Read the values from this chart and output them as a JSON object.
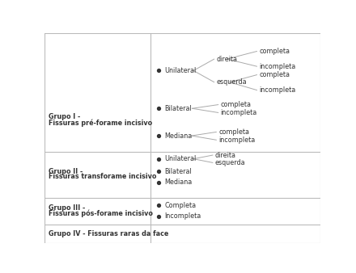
{
  "fig_width": 4.4,
  "fig_height": 3.38,
  "dpi": 100,
  "bg": "#ffffff",
  "border_color": "#bbbbbb",
  "text_color": "#333333",
  "line_color": "#aaaaaa",
  "fs": 5.8,
  "fs_bold": 5.8,
  "col_split": 0.385,
  "row_splits": [
    0.0,
    0.088,
    0.215,
    0.435,
    1.0
  ],
  "left_labels": [
    [
      "Grupo I -",
      "Fissuras pré-forame incisivo"
    ],
    [
      "Grupo II -",
      "Fissuras transforame incisivo"
    ],
    [
      "Grupo III -",
      "Fissuras pós-forame incisivo"
    ],
    [
      "Grupo IV - Fissuras raras da face",
      ""
    ]
  ]
}
